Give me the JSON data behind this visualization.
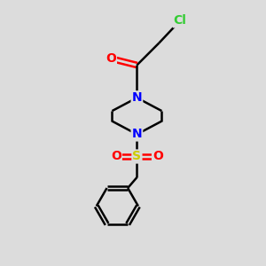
{
  "bg_color": "#dcdcdc",
  "bond_color": "#000000",
  "bond_width": 1.8,
  "atom_colors": {
    "O": "#ff0000",
    "N": "#0000ff",
    "S": "#cccc00",
    "Cl": "#33cc33",
    "C": "#000000"
  },
  "font_size": 10,
  "figsize": [
    3.0,
    3.0
  ],
  "dpi": 100,
  "xlim": [
    0,
    10
  ],
  "ylim": [
    0,
    10
  ]
}
